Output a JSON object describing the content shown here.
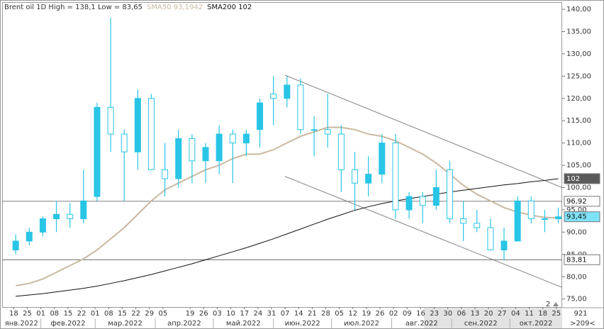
{
  "chart_data": {
    "type": "candlestick",
    "title": "Brent oil 1D High = 138,1 Low = 83,65",
    "color": "#29c5e6",
    "x": [
      "2022-01-19",
      "2022-01-26",
      "2022-02-02",
      "2022-02-09",
      "2022-02-16",
      "2022-02-23",
      "2022-03-02",
      "2022-03-09",
      "2022-03-16",
      "2022-03-23",
      "2022-03-30",
      "2022-04-06",
      "2022-04-13",
      "2022-04-20",
      "2022-04-27",
      "2022-05-04",
      "2022-05-11",
      "2022-05-18",
      "2022-05-25",
      "2022-06-01",
      "2022-06-08",
      "2022-06-15",
      "2022-06-22",
      "2022-06-29",
      "2022-07-06",
      "2022-07-13",
      "2022-07-20",
      "2022-07-27",
      "2022-08-03",
      "2022-08-10",
      "2022-08-17",
      "2022-08-24",
      "2022-08-31",
      "2022-09-07",
      "2022-09-14",
      "2022-09-21",
      "2022-09-28",
      "2022-10-05",
      "2022-10-12",
      "2022-10-19",
      "2022-10-26"
    ],
    "open": [
      86,
      88,
      90,
      93,
      94,
      93,
      98,
      118,
      112,
      108,
      120,
      104,
      102,
      111,
      106,
      106,
      112,
      110,
      113,
      121,
      120,
      123,
      113,
      113,
      112,
      104,
      101,
      103,
      110,
      95,
      98,
      96,
      104,
      93,
      92,
      91,
      86,
      88,
      97,
      93,
      93
    ],
    "high": [
      89.5,
      91,
      93.5,
      97,
      96.5,
      104,
      119,
      138.1,
      113,
      122,
      121,
      110,
      113,
      112,
      110,
      114,
      113,
      113,
      120,
      125,
      125,
      124.5,
      116,
      121,
      114,
      108,
      107,
      112,
      112,
      99,
      99,
      104,
      106,
      97,
      95,
      93,
      91,
      98,
      98,
      95,
      95.5
    ],
    "low": [
      85,
      87,
      89,
      90,
      91,
      92,
      97,
      108,
      97,
      104,
      104,
      98,
      100,
      101,
      101,
      103,
      101,
      107,
      109,
      114,
      118,
      112,
      107,
      109,
      99,
      95,
      98,
      101,
      93,
      93,
      92,
      95,
      92,
      88,
      90,
      86,
      83.65,
      88,
      92,
      90,
      92
    ],
    "close": [
      88,
      90,
      93,
      94,
      93,
      97,
      118,
      112,
      108,
      120,
      104,
      102,
      111,
      106,
      109,
      112,
      110,
      112,
      119,
      120,
      123,
      113,
      113,
      112,
      104,
      101,
      103,
      110,
      95,
      98,
      96,
      100,
      93,
      92,
      91,
      86,
      88,
      97,
      93,
      93,
      93.45
    ],
    "series": [
      {
        "name": "SMA50 93,1942",
        "color": "#cbb8a0",
        "values": [
          78,
          78.5,
          79.5,
          81,
          82.5,
          84,
          86,
          88.5,
          91,
          94,
          97,
          99.5,
          101,
          102.5,
          104,
          105,
          106.5,
          107.5,
          107.5,
          108.5,
          110,
          111.5,
          112.5,
          113.5,
          113.5,
          113,
          112,
          111.5,
          110.5,
          109,
          107.5,
          105.5,
          103,
          100.5,
          98.5,
          97,
          95.5,
          94.5,
          93.8,
          93.3,
          93.19
        ]
      },
      {
        "name": "SMA200 102",
        "color": "#111111",
        "values": [
          75.6,
          75.9,
          76.2,
          76.6,
          77,
          77.4,
          77.9,
          78.5,
          79.1,
          79.8,
          80.5,
          81.3,
          82.1,
          82.9,
          83.8,
          84.7,
          85.6,
          86.5,
          87.5,
          88.5,
          89.6,
          90.7,
          91.8,
          92.9,
          93.9,
          94.9,
          95.7,
          96.4,
          97,
          97.5,
          98,
          98.5,
          99,
          99.4,
          99.8,
          100.2,
          100.6,
          100.9,
          101.3,
          101.6,
          102
        ]
      }
    ],
    "trendlines": [
      {
        "x": [
          "2022-06-07",
          "2022-10-28"
        ],
        "y": [
          125.2,
          100
        ]
      },
      {
        "x": [
          "2022-06-07",
          "2022-10-28"
        ],
        "y": [
          102.5,
          77.6
        ]
      }
    ],
    "hlines": [
      {
        "value": 96.92,
        "label": "96,92"
      },
      {
        "value": 83.81,
        "label": "83,81"
      }
    ],
    "price_tags": [
      {
        "value": 102,
        "label": "102",
        "color": "#5a5a5a"
      },
      {
        "value": 93.45,
        "label": "93,45",
        "color": "#7fe3f7"
      }
    ],
    "xlim": [
      "2022-01-12",
      "2022-10-28"
    ],
    "ylim": [
      73.2,
      141.6
    ],
    "yticks": [
      {
        "value": 75,
        "label": "75,00"
      },
      {
        "value": 80,
        "label": "80,00"
      },
      {
        "value": 85,
        "label": "85,00"
      },
      {
        "value": 90,
        "label": "90,00"
      },
      {
        "value": 95,
        "label": "95,00"
      },
      {
        "value": 100,
        "label": "100,00"
      },
      {
        "value": 105,
        "label": "105,00"
      },
      {
        "value": 110,
        "label": "110,00"
      },
      {
        "value": 115,
        "label": "115,00"
      },
      {
        "value": 120,
        "label": "120,00"
      },
      {
        "value": 125,
        "label": "125,00"
      },
      {
        "value": 130,
        "label": "130,00"
      },
      {
        "value": 135,
        "label": "135,00"
      },
      {
        "value": 140,
        "label": "140,00"
      }
    ],
    "xticks": [
      {
        "value": "2022-01-18",
        "label": "18"
      },
      {
        "value": "2022-01-25",
        "label": "25"
      },
      {
        "value": "2022-02-01",
        "label": "01"
      },
      {
        "value": "2022-02-08",
        "label": "08"
      },
      {
        "value": "2022-02-15",
        "label": "15"
      },
      {
        "value": "2022-02-22",
        "label": "22"
      },
      {
        "value": "2022-03-01",
        "label": "01"
      },
      {
        "value": "2022-03-08",
        "label": "08"
      },
      {
        "value": "2022-03-15",
        "label": "15"
      },
      {
        "value": "2022-03-22",
        "label": "22"
      },
      {
        "value": "2022-03-29",
        "label": "29"
      },
      {
        "value": "2022-04-05",
        "label": "05"
      },
      {
        "value": "2022-04-19",
        "label": "19"
      },
      {
        "value": "2022-04-26",
        "label": "26"
      },
      {
        "value": "2022-05-03",
        "label": "03"
      },
      {
        "value": "2022-05-10",
        "label": "10"
      },
      {
        "value": "2022-05-17",
        "label": "17"
      },
      {
        "value": "2022-05-24",
        "label": "24"
      },
      {
        "value": "2022-05-31",
        "label": "31"
      },
      {
        "value": "2022-06-07",
        "label": "07"
      },
      {
        "value": "2022-06-14",
        "label": "14"
      },
      {
        "value": "2022-06-21",
        "label": "21"
      },
      {
        "value": "2022-06-28",
        "label": "28"
      },
      {
        "value": "2022-07-05",
        "label": "05"
      },
      {
        "value": "2022-07-12",
        "label": "12"
      },
      {
        "value": "2022-07-19",
        "label": "19"
      },
      {
        "value": "2022-07-26",
        "label": "26"
      },
      {
        "value": "2022-08-02",
        "label": "02"
      },
      {
        "value": "2022-08-09",
        "label": "09"
      },
      {
        "value": "2022-08-16",
        "label": "16"
      },
      {
        "value": "2022-08-23",
        "label": "23"
      },
      {
        "value": "2022-08-30",
        "label": "30"
      },
      {
        "value": "2022-09-06",
        "label": "06"
      },
      {
        "value": "2022-09-13",
        "label": "13"
      },
      {
        "value": "2022-09-20",
        "label": "20"
      },
      {
        "value": "2022-09-27",
        "label": "27"
      },
      {
        "value": "2022-10-04",
        "label": "04"
      },
      {
        "value": "2022-10-11",
        "label": "11"
      },
      {
        "value": "2022-10-18",
        "label": "18"
      },
      {
        "value": "2022-10-25",
        "label": "25"
      }
    ],
    "xmonths": [
      {
        "value": "2022-01",
        "label": "янв.2022"
      },
      {
        "value": "2022-02",
        "label": "фев.2022"
      },
      {
        "value": "2022-03",
        "label": "мар.2022"
      },
      {
        "value": "2022-04",
        "label": "апр.2022"
      },
      {
        "value": "2022-05",
        "label": "май.2022"
      },
      {
        "value": "2022-06",
        "label": "июн.2022"
      },
      {
        "value": "2022-07",
        "label": "июл.2022"
      },
      {
        "value": "2022-08",
        "label": "авг.2022"
      },
      {
        "value": "2022-09",
        "label": "сен.2022"
      },
      {
        "value": "2022-10",
        "label": "окт.2022"
      }
    ],
    "bar_count": 921,
    "range_label": ">209<",
    "page": 2
  }
}
